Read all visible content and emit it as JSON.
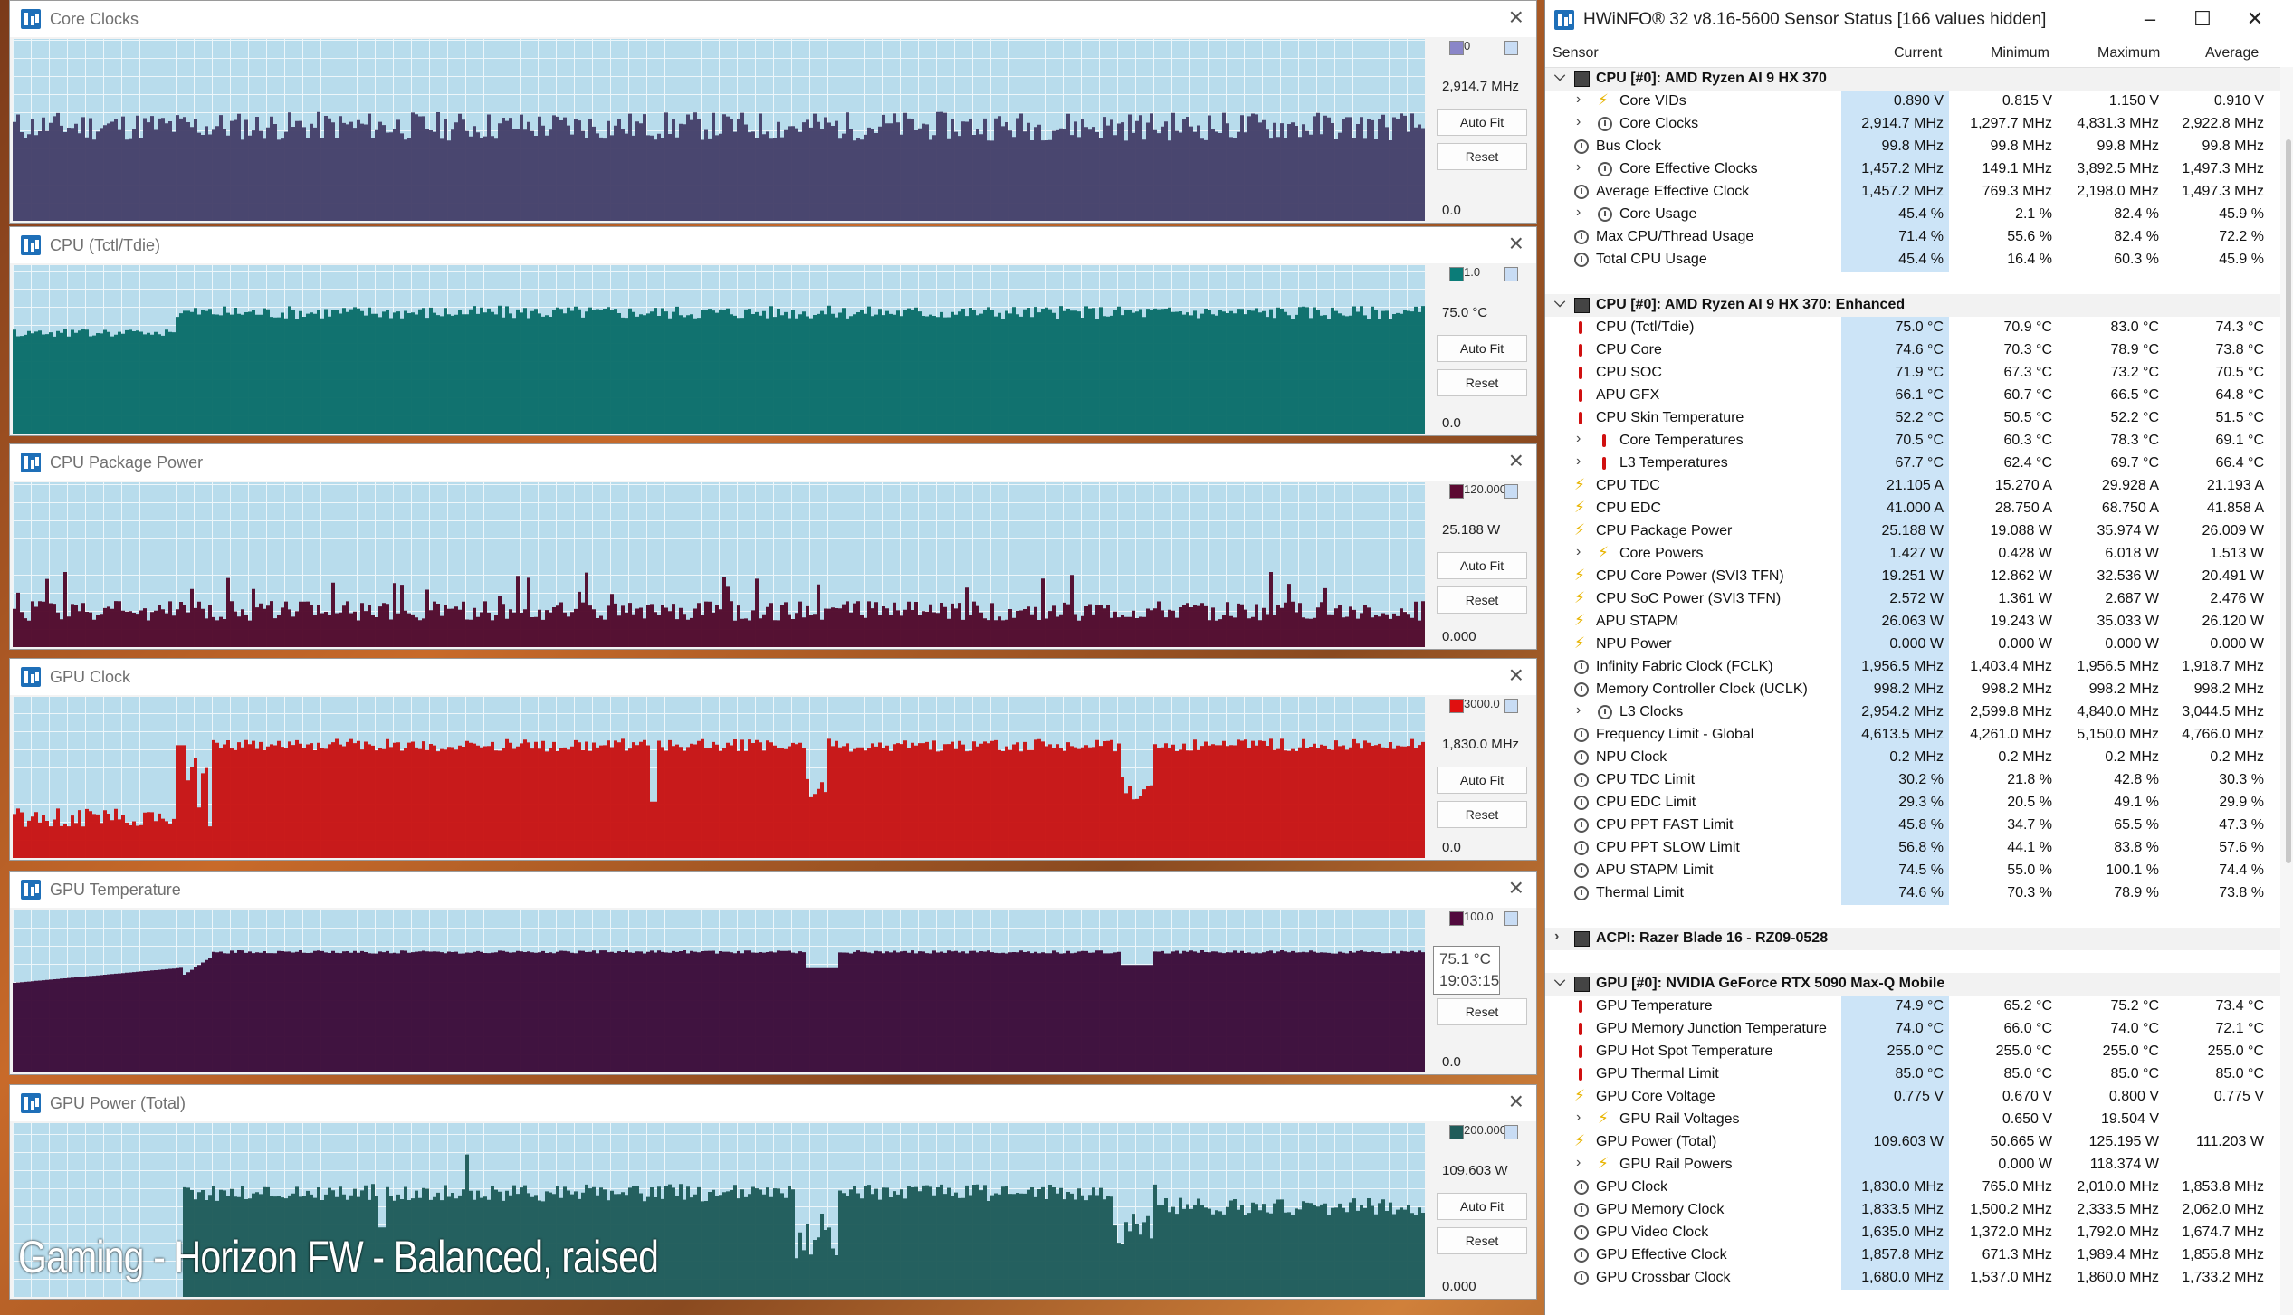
{
  "graphs": [
    {
      "title": "Core Clocks",
      "current": "2,914.7 MHz",
      "min": "0.0",
      "max_label": "0",
      "color": "#45416a",
      "fill": "#45416a",
      "swatch": "#8a86c8",
      "btn_autofit": "Auto Fit",
      "btn_reset": "Reset",
      "kind": "steady",
      "level": 0.52,
      "noise": 0.08,
      "has_autofit": true,
      "has_reset": true
    },
    {
      "title": "CPU (Tctl/Tdie)",
      "current": "75.0 °C",
      "min": "0.0",
      "max_label": "1.0",
      "color": "#0b6e6a",
      "fill": "#0b6e6a",
      "swatch": "#0b7c78",
      "btn_autofit": "Auto Fit",
      "btn_reset": "Reset",
      "kind": "steady",
      "level": 0.72,
      "noise": 0.04,
      "has_autofit": true,
      "has_reset": true
    },
    {
      "title": "CPU Package Power",
      "current": "25.188 W",
      "min": "0.000",
      "max_label": "120.000",
      "color": "#520a2c",
      "fill": "#520a2c",
      "swatch": "#5c0a32",
      "btn_autofit": "Auto Fit",
      "btn_reset": "Reset",
      "kind": "spiky",
      "level": 0.22,
      "noise": 0.06,
      "has_autofit": true,
      "has_reset": true
    },
    {
      "title": "GPU Clock",
      "current": "1,830.0 MHz",
      "min": "0.0",
      "max_label": "3000.0",
      "color": "#c81414",
      "fill": "#c81414",
      "swatch": "#e01010",
      "btn_autofit": "Auto Fit",
      "btn_reset": "Reset",
      "kind": "step",
      "level": 0.64,
      "noise": 0.04,
      "has_autofit": true,
      "has_reset": true
    },
    {
      "title": "GPU Temperature",
      "current": "",
      "min": "0.0",
      "max_label": "100.0",
      "color": "#3c0c3a",
      "fill": "#3c0c3a",
      "swatch": "#520a3e",
      "btn_autofit": "",
      "btn_reset": "Reset",
      "kind": "temp",
      "level": 0.74,
      "noise": 0.01,
      "has_autofit": false,
      "has_reset": true,
      "tooltip_value": "75.1 °C",
      "tooltip_time": "19:03:15"
    },
    {
      "title": "GPU Power (Total)",
      "current": "109.603 W",
      "min": "0.000",
      "max_label": "200.000",
      "color": "#1f5c5a",
      "fill": "#1f5c5a",
      "swatch": "#1f5c5a",
      "btn_autofit": "Auto Fit",
      "btn_reset": "Reset",
      "kind": "power",
      "level": 0.56,
      "noise": 0.06,
      "has_autofit": true,
      "has_reset": true
    }
  ],
  "overlay_caption": "Gaming - Horizon FW - Balanced, raised",
  "hwinfo": {
    "title": "HWiNFO® 32 v8.16-5600 Sensor Status [166 values hidden]",
    "columns": {
      "sensor": "Sensor",
      "current": "Current",
      "minimum": "Minimum",
      "maximum": "Maximum",
      "average": "Average"
    },
    "rows": [
      {
        "type": "group",
        "chev": "expanded",
        "name": "CPU [#0]: AMD Ryzen AI 9 HX 370"
      },
      {
        "icon": "volt",
        "chev": "collapsed",
        "indent": 1,
        "name": "Core VIDs",
        "cur": "0.890 V",
        "min": "0.815 V",
        "max": "1.150 V",
        "avg": "0.910 V"
      },
      {
        "icon": "clock",
        "chev": "collapsed",
        "indent": 1,
        "name": "Core Clocks",
        "cur": "2,914.7 MHz",
        "min": "1,297.7 MHz",
        "max": "4,831.3 MHz",
        "avg": "2,922.8 MHz"
      },
      {
        "icon": "clock",
        "indent": 0,
        "name": "Bus Clock",
        "cur": "99.8 MHz",
        "min": "99.8 MHz",
        "max": "99.8 MHz",
        "avg": "99.8 MHz"
      },
      {
        "icon": "clock",
        "chev": "collapsed",
        "indent": 1,
        "name": "Core Effective Clocks",
        "cur": "1,457.2 MHz",
        "min": "149.1 MHz",
        "max": "3,892.5 MHz",
        "avg": "1,497.3 MHz"
      },
      {
        "icon": "clock",
        "indent": 0,
        "name": "Average Effective Clock",
        "cur": "1,457.2 MHz",
        "min": "769.3 MHz",
        "max": "2,198.0 MHz",
        "avg": "1,497.3 MHz"
      },
      {
        "icon": "clock",
        "chev": "collapsed",
        "indent": 1,
        "name": "Core Usage",
        "cur": "45.4 %",
        "min": "2.1 %",
        "max": "82.4 %",
        "avg": "45.9 %"
      },
      {
        "icon": "clock",
        "indent": 0,
        "name": "Max CPU/Thread Usage",
        "cur": "71.4 %",
        "min": "55.6 %",
        "max": "82.4 %",
        "avg": "72.2 %"
      },
      {
        "icon": "clock",
        "indent": 0,
        "name": "Total CPU Usage",
        "cur": "45.4 %",
        "min": "16.4 %",
        "max": "60.3 %",
        "avg": "45.9 %"
      },
      {
        "type": "spacer"
      },
      {
        "type": "group",
        "chev": "expanded",
        "name": "CPU [#0]: AMD Ryzen AI 9 HX 370: Enhanced"
      },
      {
        "icon": "therm",
        "indent": 0,
        "name": "CPU (Tctl/Tdie)",
        "cur": "75.0 °C",
        "min": "70.9 °C",
        "max": "83.0 °C",
        "avg": "74.3 °C"
      },
      {
        "icon": "therm",
        "indent": 0,
        "name": "CPU Core",
        "cur": "74.6 °C",
        "min": "70.3 °C",
        "max": "78.9 °C",
        "avg": "73.8 °C"
      },
      {
        "icon": "therm",
        "indent": 0,
        "name": "CPU SOC",
        "cur": "71.9 °C",
        "min": "67.3 °C",
        "max": "73.2 °C",
        "avg": "70.5 °C"
      },
      {
        "icon": "therm",
        "indent": 0,
        "name": "APU GFX",
        "cur": "66.1 °C",
        "min": "60.7 °C",
        "max": "66.5 °C",
        "avg": "64.8 °C"
      },
      {
        "icon": "therm",
        "indent": 0,
        "name": "CPU Skin Temperature",
        "cur": "52.2 °C",
        "min": "50.5 °C",
        "max": "52.2 °C",
        "avg": "51.5 °C"
      },
      {
        "icon": "therm",
        "chev": "collapsed",
        "indent": 1,
        "name": "Core Temperatures",
        "cur": "70.5 °C",
        "min": "60.3 °C",
        "max": "78.3 °C",
        "avg": "69.1 °C"
      },
      {
        "icon": "therm",
        "chev": "collapsed",
        "indent": 1,
        "name": "L3 Temperatures",
        "cur": "67.7 °C",
        "min": "62.4 °C",
        "max": "69.7 °C",
        "avg": "66.4 °C"
      },
      {
        "icon": "volt",
        "indent": 0,
        "name": "CPU TDC",
        "cur": "21.105 A",
        "min": "15.270 A",
        "max": "29.928 A",
        "avg": "21.193 A"
      },
      {
        "icon": "volt",
        "indent": 0,
        "name": "CPU EDC",
        "cur": "41.000 A",
        "min": "28.750 A",
        "max": "68.750 A",
        "avg": "41.858 A"
      },
      {
        "icon": "volt",
        "indent": 0,
        "name": "CPU Package Power",
        "cur": "25.188 W",
        "min": "19.088 W",
        "max": "35.974 W",
        "avg": "26.009 W"
      },
      {
        "icon": "volt",
        "chev": "collapsed",
        "indent": 1,
        "name": "Core Powers",
        "cur": "1.427 W",
        "min": "0.428 W",
        "max": "6.018 W",
        "avg": "1.513 W"
      },
      {
        "icon": "volt",
        "indent": 0,
        "name": "CPU Core Power (SVI3 TFN)",
        "cur": "19.251 W",
        "min": "12.862 W",
        "max": "32.536 W",
        "avg": "20.491 W"
      },
      {
        "icon": "volt",
        "indent": 0,
        "name": "CPU SoC Power (SVI3 TFN)",
        "cur": "2.572 W",
        "min": "1.361 W",
        "max": "2.687 W",
        "avg": "2.476 W"
      },
      {
        "icon": "volt",
        "indent": 0,
        "name": "APU STAPM",
        "cur": "26.063 W",
        "min": "19.243 W",
        "max": "35.033 W",
        "avg": "26.120 W"
      },
      {
        "icon": "volt",
        "indent": 0,
        "name": "NPU Power",
        "cur": "0.000 W",
        "min": "0.000 W",
        "max": "0.000 W",
        "avg": "0.000 W"
      },
      {
        "icon": "clock",
        "indent": 0,
        "name": "Infinity Fabric Clock (FCLK)",
        "cur": "1,956.5 MHz",
        "min": "1,403.4 MHz",
        "max": "1,956.5 MHz",
        "avg": "1,918.7 MHz"
      },
      {
        "icon": "clock",
        "indent": 0,
        "name": "Memory Controller Clock (UCLK)",
        "cur": "998.2 MHz",
        "min": "998.2 MHz",
        "max": "998.2 MHz",
        "avg": "998.2 MHz"
      },
      {
        "icon": "clock",
        "chev": "collapsed",
        "indent": 1,
        "name": "L3 Clocks",
        "cur": "2,954.2 MHz",
        "min": "2,599.8 MHz",
        "max": "4,840.0 MHz",
        "avg": "3,044.5 MHz"
      },
      {
        "icon": "clock",
        "indent": 0,
        "name": "Frequency Limit - Global",
        "cur": "4,613.5 MHz",
        "min": "4,261.0 MHz",
        "max": "5,150.0 MHz",
        "avg": "4,766.0 MHz"
      },
      {
        "icon": "clock",
        "indent": 0,
        "name": "NPU Clock",
        "cur": "0.2 MHz",
        "min": "0.2 MHz",
        "max": "0.2 MHz",
        "avg": "0.2 MHz"
      },
      {
        "icon": "clock",
        "indent": 0,
        "name": "CPU TDC Limit",
        "cur": "30.2 %",
        "min": "21.8 %",
        "max": "42.8 %",
        "avg": "30.3 %"
      },
      {
        "icon": "clock",
        "indent": 0,
        "name": "CPU EDC Limit",
        "cur": "29.3 %",
        "min": "20.5 %",
        "max": "49.1 %",
        "avg": "29.9 %"
      },
      {
        "icon": "clock",
        "indent": 0,
        "name": "CPU PPT FAST Limit",
        "cur": "45.8 %",
        "min": "34.7 %",
        "max": "65.5 %",
        "avg": "47.3 %"
      },
      {
        "icon": "clock",
        "indent": 0,
        "name": "CPU PPT SLOW Limit",
        "cur": "56.8 %",
        "min": "44.1 %",
        "max": "83.8 %",
        "avg": "57.6 %"
      },
      {
        "icon": "clock",
        "indent": 0,
        "name": "APU STAPM Limit",
        "cur": "74.5 %",
        "min": "55.0 %",
        "max": "100.1 %",
        "avg": "74.4 %"
      },
      {
        "icon": "clock",
        "indent": 0,
        "name": "Thermal Limit",
        "cur": "74.6 %",
        "min": "70.3 %",
        "max": "78.9 %",
        "avg": "73.8 %"
      },
      {
        "type": "spacer"
      },
      {
        "type": "group",
        "chev": "collapsed",
        "name": "ACPI: Razer Blade 16 - RZ09-0528"
      },
      {
        "type": "spacer"
      },
      {
        "type": "group",
        "chev": "expanded",
        "name": "GPU [#0]: NVIDIA  GeForce RTX 5090 Max-Q Mobile"
      },
      {
        "icon": "therm",
        "indent": 0,
        "name": "GPU Temperature",
        "cur": "74.9 °C",
        "min": "65.2 °C",
        "max": "75.2 °C",
        "avg": "73.4 °C"
      },
      {
        "icon": "therm",
        "indent": 0,
        "name": "GPU Memory Junction Temperature",
        "cur": "74.0 °C",
        "min": "66.0 °C",
        "max": "74.0 °C",
        "avg": "72.1 °C"
      },
      {
        "icon": "therm",
        "indent": 0,
        "name": "GPU Hot Spot Temperature",
        "cur": "255.0 °C",
        "min": "255.0 °C",
        "max": "255.0 °C",
        "avg": "255.0 °C"
      },
      {
        "icon": "therm",
        "indent": 0,
        "name": "GPU Thermal Limit",
        "cur": "85.0 °C",
        "min": "85.0 °C",
        "max": "85.0 °C",
        "avg": "85.0 °C"
      },
      {
        "icon": "volt",
        "indent": 0,
        "name": "GPU Core Voltage",
        "cur": "0.775 V",
        "min": "0.670 V",
        "max": "0.800 V",
        "avg": "0.775 V"
      },
      {
        "icon": "volt",
        "chev": "collapsed",
        "indent": 1,
        "name": "GPU Rail Voltages",
        "cur": "",
        "min": "0.650 V",
        "max": "19.504 V",
        "avg": ""
      },
      {
        "icon": "volt",
        "indent": 0,
        "name": "GPU Power (Total)",
        "cur": "109.603 W",
        "min": "50.665 W",
        "max": "125.195 W",
        "avg": "111.203 W"
      },
      {
        "icon": "volt",
        "chev": "collapsed",
        "indent": 1,
        "name": "GPU Rail Powers",
        "cur": "",
        "min": "0.000 W",
        "max": "118.374 W",
        "avg": ""
      },
      {
        "icon": "clock",
        "indent": 0,
        "name": "GPU Clock",
        "cur": "1,830.0 MHz",
        "min": "765.0 MHz",
        "max": "2,010.0 MHz",
        "avg": "1,853.8 MHz"
      },
      {
        "icon": "clock",
        "indent": 0,
        "name": "GPU Memory Clock",
        "cur": "1,833.5 MHz",
        "min": "1,500.2 MHz",
        "max": "2,333.5 MHz",
        "avg": "2,062.0 MHz"
      },
      {
        "icon": "clock",
        "indent": 0,
        "name": "GPU Video Clock",
        "cur": "1,635.0 MHz",
        "min": "1,372.0 MHz",
        "max": "1,792.0 MHz",
        "avg": "1,674.7 MHz"
      },
      {
        "icon": "clock",
        "indent": 0,
        "name": "GPU Effective Clock",
        "cur": "1,857.8 MHz",
        "min": "671.3 MHz",
        "max": "1,989.4 MHz",
        "avg": "1,855.8 MHz"
      },
      {
        "icon": "clock",
        "indent": 0,
        "name": "GPU Crossbar Clock",
        "cur": "1,680.0 MHz",
        "min": "1,537.0 MHz",
        "max": "1,860.0 MHz",
        "avg": "1,733.2 MHz"
      }
    ]
  }
}
